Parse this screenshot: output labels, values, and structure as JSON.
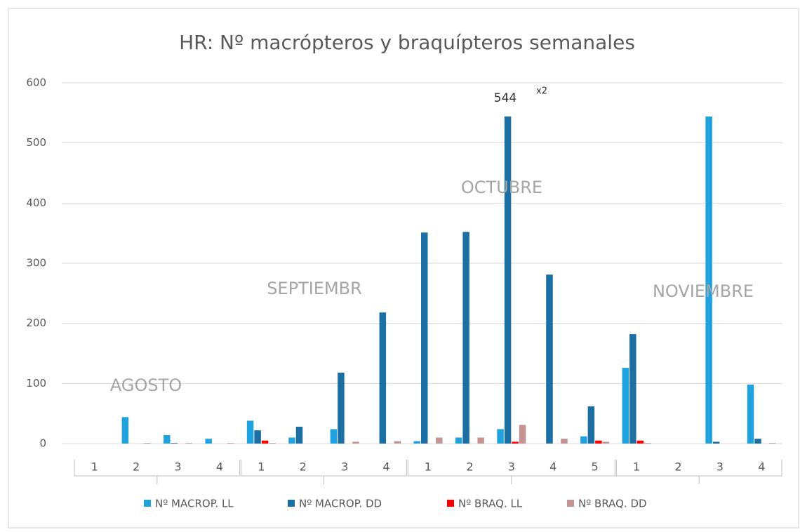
{
  "chart_data": {
    "type": "bar",
    "title": "HR: Nº macrópteros y braquípteros semanales",
    "categories": [
      "1",
      "2",
      "3",
      "4",
      "1",
      "2",
      "3",
      "4",
      "1",
      "2",
      "3",
      "4",
      "5",
      "1",
      "2",
      "3",
      "4"
    ],
    "series": [
      {
        "name": "Nº MACROP. LL",
        "color": "#1fa2de",
        "values": [
          0,
          44,
          14,
          8,
          38,
          10,
          24,
          0,
          4,
          10,
          24,
          0,
          12,
          126,
          0,
          544,
          98
        ]
      },
      {
        "name": "Nº MACROP. DD",
        "color": "#1b6fa3",
        "values": [
          0,
          0,
          1,
          0,
          22,
          28,
          118,
          218,
          351,
          352,
          544,
          281,
          62,
          182,
          0,
          3,
          8
        ]
      },
      {
        "name": "Nº BRAQ. LL",
        "color": "#ff0000",
        "values": [
          0,
          0,
          0,
          0,
          5,
          0,
          0,
          0,
          0,
          0,
          3,
          0,
          5,
          5,
          0,
          0,
          0
        ]
      },
      {
        "name": "Nº BRAQ. DD",
        "color": "#c49393",
        "values": [
          0,
          1,
          1,
          1,
          1,
          0,
          3,
          4,
          10,
          10,
          31,
          8,
          3,
          1,
          0,
          0,
          1
        ]
      }
    ],
    "annotations": [
      "AGOSTO",
      "SEPTIEMBR",
      "OCTUBRE",
      "NOVIEMBRE",
      "544",
      "x2"
    ],
    "ylim": [
      0,
      600
    ],
    "yticks": [
      0,
      100,
      200,
      300,
      400,
      500,
      600
    ],
    "grid": true,
    "legend": "bottom"
  }
}
